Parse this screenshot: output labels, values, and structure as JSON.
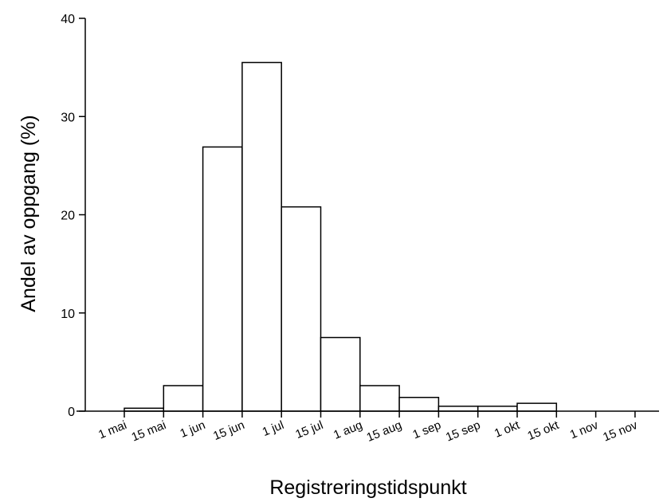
{
  "chart_data": {
    "type": "bar",
    "title": "",
    "xlabel": "Registreringstidspunkt",
    "ylabel": "Andel av oppgang (%)",
    "ylim": [
      0,
      40
    ],
    "yticks": [
      0,
      10,
      20,
      30,
      40
    ],
    "x_tick_labels": [
      "1 mai",
      "15 mai",
      "1 jun",
      "15 jun",
      "1 jul",
      "15 jul",
      "1 aug",
      "15 aug",
      "1 sep",
      "15 sep",
      "1 okt",
      "15 okt",
      "1 nov",
      "15 nov"
    ],
    "bins": [
      {
        "start": "1 mai",
        "end": "15 mai",
        "value": 0.3
      },
      {
        "start": "15 mai",
        "end": "1 jun",
        "value": 2.6
      },
      {
        "start": "1 jun",
        "end": "15 jun",
        "value": 26.9
      },
      {
        "start": "15 jun",
        "end": "1 jul",
        "value": 35.5
      },
      {
        "start": "1 jul",
        "end": "15 jul",
        "value": 20.8
      },
      {
        "start": "15 jul",
        "end": "1 aug",
        "value": 7.5
      },
      {
        "start": "1 aug",
        "end": "15 aug",
        "value": 2.6
      },
      {
        "start": "15 aug",
        "end": "1 sep",
        "value": 1.4
      },
      {
        "start": "1 sep",
        "end": "15 sep",
        "value": 0.5
      },
      {
        "start": "15 sep",
        "end": "1 okt",
        "value": 0.5
      },
      {
        "start": "1 okt",
        "end": "15 okt",
        "value": 0.8
      },
      {
        "start": "15 okt",
        "end": "1 nov",
        "value": 0
      },
      {
        "start": "1 nov",
        "end": "15 nov",
        "value": 0
      }
    ],
    "grid": false,
    "legend": "none",
    "bar_fill": "#ffffff",
    "bar_stroke": "#000000"
  }
}
